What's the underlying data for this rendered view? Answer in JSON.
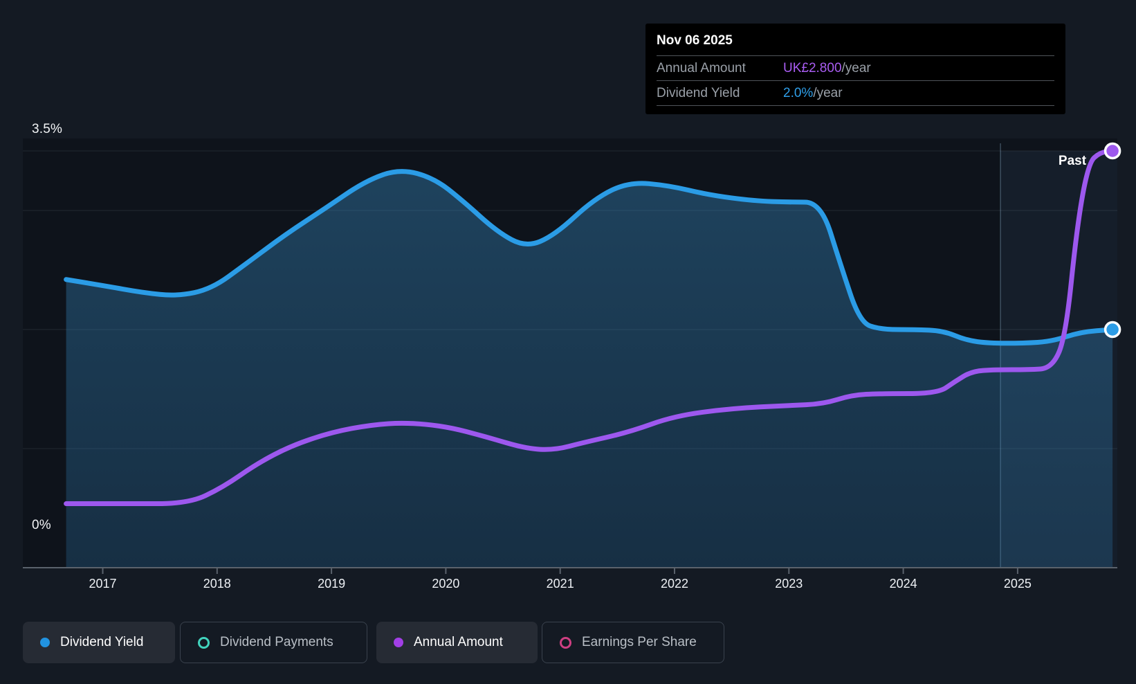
{
  "tooltip": {
    "date": "Nov 06 2025",
    "rows": [
      {
        "label": "Annual Amount",
        "value": "UK£2.800",
        "suffix": "/year",
        "value_color": "#a95df2"
      },
      {
        "label": "Dividend Yield",
        "value": "2.0%",
        "suffix": "/year",
        "value_color": "#2f9fe9"
      }
    ]
  },
  "chart_data": {
    "type": "area",
    "x_tick_labels": [
      "2017",
      "2018",
      "2019",
      "2020",
      "2021",
      "2022",
      "2023",
      "2024",
      "2025"
    ],
    "x_tick_years": [
      2017,
      2018,
      2019,
      2020,
      2021,
      2022,
      2023,
      2024,
      2025
    ],
    "x_range_years": [
      2016.68,
      2025.83
    ],
    "ylim_pct": [
      0,
      3.5
    ],
    "y_gridlines_pct": [
      3.5,
      3.0,
      2.0,
      1.0
    ],
    "y_axis_labels": [
      {
        "pct": 3.5,
        "text": "3.5%"
      },
      {
        "pct": 0,
        "text": "0%"
      }
    ],
    "grid": "horizontal",
    "legend_position": "bottom",
    "past_label": "Past",
    "past_region_start_year": 2024.85,
    "series": [
      {
        "name": "Dividend Yield",
        "unit": "percent_per_year",
        "color": "#2b9ce6",
        "area": true,
        "end_marker": true,
        "points": [
          [
            2016.68,
            2.42
          ],
          [
            2017.0,
            2.37
          ],
          [
            2017.35,
            2.31
          ],
          [
            2017.65,
            2.28
          ],
          [
            2017.95,
            2.34
          ],
          [
            2018.25,
            2.55
          ],
          [
            2018.6,
            2.8
          ],
          [
            2018.95,
            3.02
          ],
          [
            2019.3,
            3.25
          ],
          [
            2019.6,
            3.35
          ],
          [
            2019.9,
            3.27
          ],
          [
            2020.15,
            3.08
          ],
          [
            2020.45,
            2.82
          ],
          [
            2020.7,
            2.69
          ],
          [
            2020.95,
            2.79
          ],
          [
            2021.3,
            3.1
          ],
          [
            2021.6,
            3.24
          ],
          [
            2021.95,
            3.21
          ],
          [
            2022.3,
            3.13
          ],
          [
            2022.7,
            3.08
          ],
          [
            2023.0,
            3.07
          ],
          [
            2023.28,
            3.07
          ],
          [
            2023.45,
            2.55
          ],
          [
            2023.62,
            2.06
          ],
          [
            2023.8,
            2.0
          ],
          [
            2024.1,
            2.0
          ],
          [
            2024.35,
            1.99
          ],
          [
            2024.55,
            1.91
          ],
          [
            2024.75,
            1.885
          ],
          [
            2025.05,
            1.885
          ],
          [
            2025.3,
            1.9
          ],
          [
            2025.55,
            1.98
          ],
          [
            2025.83,
            2.0
          ]
        ]
      },
      {
        "name": "Annual Amount",
        "unit": "GBP_per_year",
        "color": "#9d58ee",
        "area": false,
        "end_marker": true,
        "gbp_to_pct": 1.25,
        "points": [
          [
            2016.68,
            0.43
          ],
          [
            2017.2,
            0.43
          ],
          [
            2017.75,
            0.43
          ],
          [
            2018.05,
            0.54
          ],
          [
            2018.35,
            0.7
          ],
          [
            2018.65,
            0.82
          ],
          [
            2019.0,
            0.91
          ],
          [
            2019.35,
            0.96
          ],
          [
            2019.65,
            0.975
          ],
          [
            2020.0,
            0.95
          ],
          [
            2020.35,
            0.88
          ],
          [
            2020.7,
            0.8
          ],
          [
            2020.95,
            0.79
          ],
          [
            2021.2,
            0.84
          ],
          [
            2021.6,
            0.91
          ],
          [
            2022.0,
            1.02
          ],
          [
            2022.5,
            1.07
          ],
          [
            2023.0,
            1.09
          ],
          [
            2023.3,
            1.1
          ],
          [
            2023.55,
            1.16
          ],
          [
            2023.8,
            1.17
          ],
          [
            2024.3,
            1.17
          ],
          [
            2024.45,
            1.25
          ],
          [
            2024.6,
            1.32
          ],
          [
            2024.8,
            1.33
          ],
          [
            2025.1,
            1.33
          ],
          [
            2025.3,
            1.34
          ],
          [
            2025.42,
            1.55
          ],
          [
            2025.52,
            2.3
          ],
          [
            2025.62,
            2.72
          ],
          [
            2025.72,
            2.79
          ],
          [
            2025.83,
            2.8
          ]
        ]
      }
    ]
  },
  "legend": {
    "items": [
      {
        "label": "Dividend Yield",
        "color": "#2193e0",
        "marker": "filled",
        "active": true
      },
      {
        "label": "Dividend Payments",
        "color": "#41d3bd",
        "marker": "ring",
        "active": false
      },
      {
        "label": "Annual Amount",
        "color": "#a23fe6",
        "marker": "filled",
        "active": true
      },
      {
        "label": "Earnings Per Share",
        "color": "#ce3f82",
        "marker": "ring",
        "active": false
      }
    ]
  },
  "colors": {
    "background": "#141a23",
    "plot_background": "#0e131b",
    "axis_line": "#5a626c",
    "tick_mark": "#5a626c",
    "grid_line": "rgba(220,235,245,0.10)",
    "past_band": "rgba(120,190,235,0.07)",
    "divider_line": "rgba(165,205,235,0.30)",
    "area_gradient_top": "rgba(58,146,204,0.38)",
    "area_gradient_bottom": "rgba(47,127,184,0.26)"
  }
}
